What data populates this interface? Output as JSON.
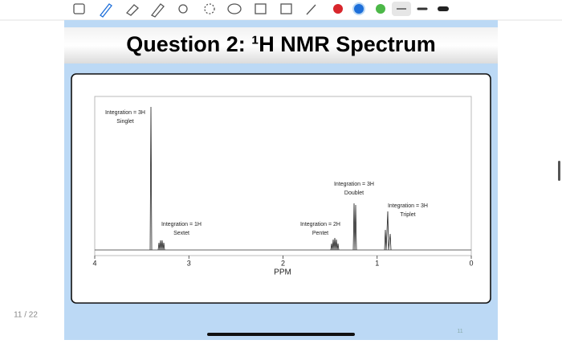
{
  "page_counter": "11 / 22",
  "slide": {
    "title": "Question 2: ¹H NMR Spectrum",
    "page_number": "11"
  },
  "spectrum": {
    "xlabel": "PPM",
    "xlim": [
      4,
      0
    ],
    "xticks": [
      4,
      3,
      2,
      1,
      0
    ],
    "annotations": [
      {
        "lines": [
          "Integration = 3H",
          "Singlet"
        ]
      },
      {
        "lines": [
          "Integration = 1H",
          "Sextet"
        ]
      },
      {
        "lines": [
          "Integration = 2H",
          "Pentet"
        ]
      },
      {
        "lines": [
          "Integration = 3H",
          "Doublet"
        ]
      },
      {
        "lines": [
          "Integration = 3H",
          "Triplet"
        ]
      }
    ]
  }
}
